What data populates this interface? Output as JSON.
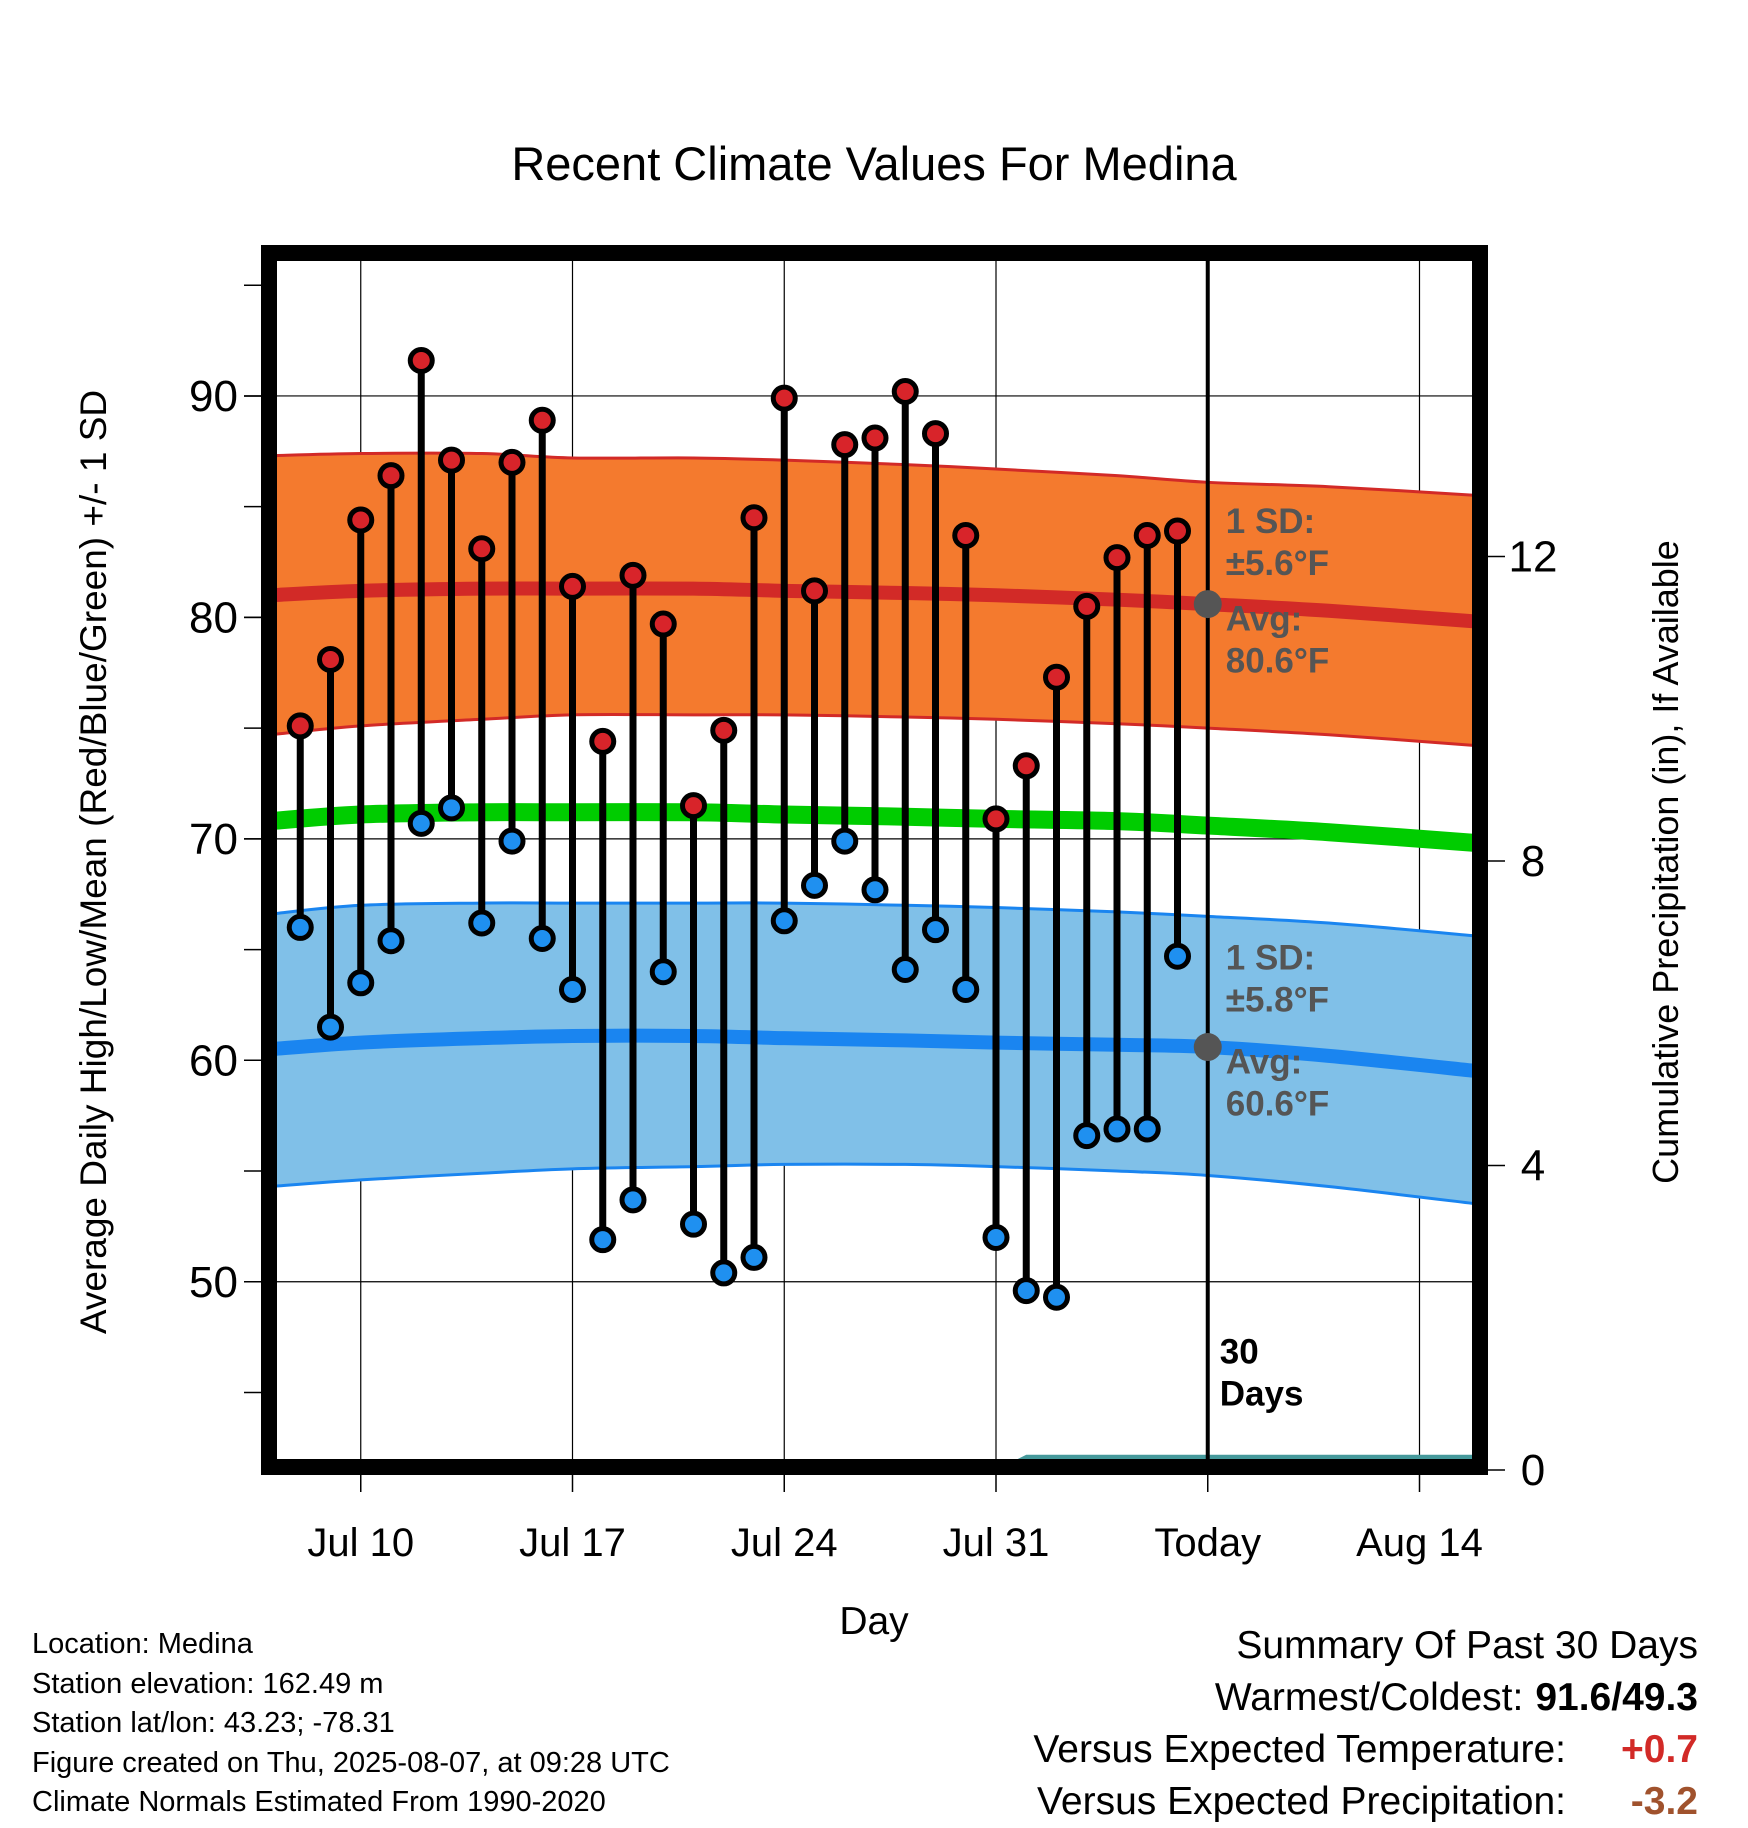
{
  "chart_data": {
    "type": "line",
    "title": "Recent Climate Values For Medina",
    "xlabel": "Day",
    "ylabel": "Average Daily High/Low/Mean (Red/Blue/Green) +/- 1 SD",
    "y2label": "Cumulative Precipitation (in), If Available",
    "ylim": [
      41.5,
      96.5
    ],
    "y_ticks": [
      50,
      60,
      70,
      80,
      90
    ],
    "y2lim": [
      0,
      16
    ],
    "y2_ticks": [
      0,
      4,
      8,
      12
    ],
    "x_range": [
      "Jul 7",
      "Aug 16"
    ],
    "x_ticks": [
      {
        "date": "Jul 10",
        "label": "Jul 10"
      },
      {
        "date": "Jul 17",
        "label": "Jul 17"
      },
      {
        "date": "Jul 24",
        "label": "Jul 24"
      },
      {
        "date": "Jul 31",
        "label": "Jul 31"
      },
      {
        "date": "Aug 7",
        "label": "Today"
      },
      {
        "date": "Aug 14",
        "label": "Aug 14"
      }
    ],
    "grid": true,
    "today": "Aug 7",
    "today_label": "30\nDays",
    "daily_observations": {
      "dates": [
        "Jul 8",
        "Jul 9",
        "Jul 10",
        "Jul 11",
        "Jul 12",
        "Jul 13",
        "Jul 14",
        "Jul 15",
        "Jul 16",
        "Jul 17",
        "Jul 18",
        "Jul 19",
        "Jul 20",
        "Jul 21",
        "Jul 22",
        "Jul 23",
        "Jul 24",
        "Jul 25",
        "Jul 26",
        "Jul 27",
        "Jul 28",
        "Jul 29",
        "Jul 30",
        "Jul 31",
        "Aug 1",
        "Aug 2",
        "Aug 3",
        "Aug 4",
        "Aug 5",
        "Aug 6"
      ],
      "high": [
        75.1,
        78.1,
        84.4,
        86.4,
        91.6,
        87.1,
        83.1,
        87.0,
        88.9,
        81.4,
        74.4,
        81.9,
        79.7,
        71.5,
        74.9,
        84.5,
        89.9,
        81.2,
        87.8,
        88.1,
        90.2,
        88.3,
        83.7,
        70.9,
        73.3,
        77.3,
        80.5,
        82.7,
        83.7,
        83.9
      ],
      "low": [
        66.0,
        61.5,
        63.5,
        65.4,
        70.7,
        71.4,
        66.2,
        69.9,
        65.5,
        63.2,
        51.9,
        53.7,
        64.0,
        52.6,
        50.4,
        51.1,
        66.3,
        67.9,
        69.9,
        67.7,
        64.1,
        65.9,
        63.2,
        52.0,
        49.6,
        49.3,
        56.6,
        56.9,
        56.9,
        64.7
      ]
    },
    "normals": {
      "dates": [
        "Jul 7",
        "Jul 10",
        "Jul 14",
        "Jul 17",
        "Jul 21",
        "Jul 24",
        "Jul 28",
        "Jul 31",
        "Aug 4",
        "Aug 7",
        "Aug 11",
        "Aug 16"
      ],
      "high_mean": [
        81.0,
        81.2,
        81.3,
        81.3,
        81.3,
        81.2,
        81.1,
        81.0,
        80.8,
        80.6,
        80.3,
        79.8
      ],
      "high_upper": [
        87.3,
        87.4,
        87.4,
        87.2,
        87.2,
        87.1,
        86.9,
        86.7,
        86.4,
        86.1,
        85.9,
        85.5
      ],
      "high_lower": [
        74.7,
        75.1,
        75.4,
        75.6,
        75.6,
        75.6,
        75.5,
        75.4,
        75.2,
        75.0,
        74.7,
        74.2
      ],
      "mean": [
        70.8,
        71.1,
        71.2,
        71.2,
        71.2,
        71.1,
        71.0,
        70.9,
        70.8,
        70.6,
        70.3,
        69.8
      ],
      "low_mean": [
        60.5,
        60.8,
        61.0,
        61.1,
        61.1,
        61.0,
        60.9,
        60.8,
        60.7,
        60.6,
        60.2,
        59.5
      ],
      "low_upper": [
        66.6,
        67.0,
        67.1,
        67.1,
        67.1,
        67.1,
        67.0,
        66.9,
        66.7,
        66.5,
        66.2,
        65.6
      ],
      "low_lower": [
        54.3,
        54.6,
        54.9,
        55.1,
        55.2,
        55.3,
        55.3,
        55.2,
        55.0,
        54.8,
        54.3,
        53.5
      ]
    },
    "cumulative_precip": {
      "dates": [
        "Jul 31",
        "Aug 1",
        "Aug 16"
      ],
      "values": [
        0.0,
        0.2,
        0.2
      ]
    },
    "annotations": {
      "high_sd": "1 SD:\n±5.6°F",
      "high_avg": "Avg:\n80.6°F",
      "low_sd": "1 SD:\n±5.8°F",
      "low_avg": "Avg:\n60.6°F",
      "today_avg_high": 80.6,
      "today_avg_low": 60.6
    },
    "colors": {
      "high_band": "#f47a2e",
      "high_line": "#d22a27",
      "low_band": "#80c0e8",
      "low_line": "#1a85f0",
      "mean_line": "#00cc00",
      "precip": "#45999b",
      "high_marker": "#d8242a",
      "low_marker": "#1f90f0",
      "annotation": "#555555"
    }
  },
  "info": {
    "location": "Location: Medina",
    "elevation": "Station elevation: 162.49 m",
    "latlon": "Station lat/lon: 43.23; -78.31",
    "created": "Figure created on Thu, 2025-08-07, at 09:28 UTC",
    "normals_period": "Climate Normals Estimated From 1990-2020"
  },
  "summary": {
    "title": "Summary Of Past 30 Days",
    "warmest_label": "Warmest/Coldest:",
    "warmest_value": "91.6/49.3",
    "temp_label": "Versus Expected Temperature:",
    "temp_value": "+0.7",
    "temp_color": "#d22a27",
    "precip_label": "Versus Expected Precipitation:",
    "precip_value": "-3.2",
    "precip_color": "#a0522d"
  }
}
